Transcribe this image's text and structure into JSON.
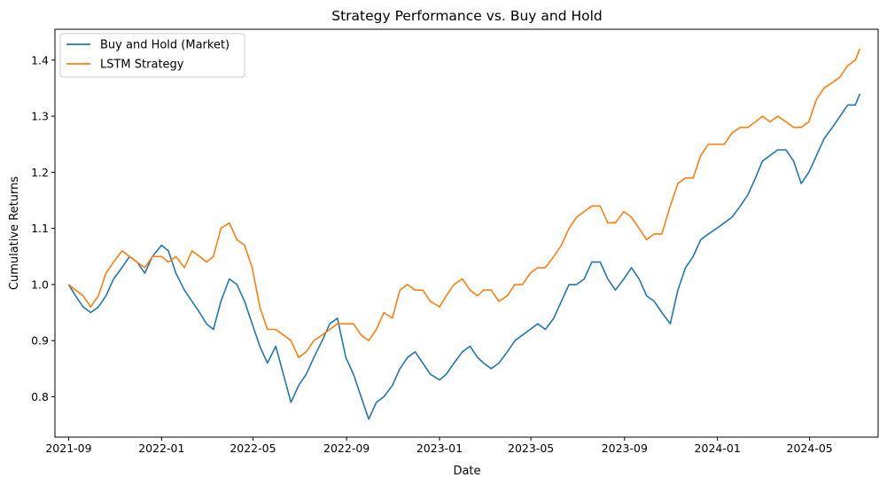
{
  "chart_data": {
    "type": "line",
    "title": "Strategy Performance vs. Buy and Hold",
    "xlabel": "Date",
    "ylabel": "Cumulative Returns",
    "xlim": [
      "2021-08-14",
      "2024-07-30"
    ],
    "ylim": [
      0.728,
      1.455
    ],
    "x_ticks": [
      "2021-09",
      "2022-01",
      "2022-05",
      "2022-09",
      "2023-01",
      "2023-05",
      "2023-09",
      "2024-01",
      "2024-05"
    ],
    "x_tick_dates": [
      "2021-09-01",
      "2022-01-01",
      "2022-05-01",
      "2022-09-01",
      "2023-01-01",
      "2023-05-01",
      "2023-09-01",
      "2024-01-01",
      "2024-05-01"
    ],
    "y_ticks": [
      "0.8",
      "0.9",
      "1.0",
      "1.1",
      "1.2",
      "1.3",
      "1.4"
    ],
    "y_tick_values": [
      0.8,
      0.9,
      1.0,
      1.1,
      1.2,
      1.3,
      1.4
    ],
    "grid": false,
    "legend_position": "top-left",
    "series": [
      {
        "name": "Buy and Hold (Market)",
        "color": "#1f77b4",
        "points": [
          [
            "2021-09-01",
            1.0
          ],
          [
            "2021-09-10",
            0.98
          ],
          [
            "2021-09-20",
            0.96
          ],
          [
            "2021-09-30",
            0.95
          ],
          [
            "2021-10-10",
            0.96
          ],
          [
            "2021-10-20",
            0.98
          ],
          [
            "2021-10-30",
            1.01
          ],
          [
            "2021-11-10",
            1.03
          ],
          [
            "2021-11-20",
            1.05
          ],
          [
            "2021-11-30",
            1.04
          ],
          [
            "2021-12-10",
            1.02
          ],
          [
            "2021-12-20",
            1.05
          ],
          [
            "2022-01-01",
            1.07
          ],
          [
            "2022-01-10",
            1.06
          ],
          [
            "2022-01-20",
            1.02
          ],
          [
            "2022-01-31",
            0.99
          ],
          [
            "2022-02-10",
            0.97
          ],
          [
            "2022-02-20",
            0.95
          ],
          [
            "2022-03-01",
            0.93
          ],
          [
            "2022-03-10",
            0.92
          ],
          [
            "2022-03-20",
            0.97
          ],
          [
            "2022-03-31",
            1.01
          ],
          [
            "2022-04-10",
            1.0
          ],
          [
            "2022-04-20",
            0.97
          ],
          [
            "2022-04-30",
            0.93
          ],
          [
            "2022-05-10",
            0.89
          ],
          [
            "2022-05-20",
            0.86
          ],
          [
            "2022-05-31",
            0.89
          ],
          [
            "2022-06-10",
            0.84
          ],
          [
            "2022-06-20",
            0.79
          ],
          [
            "2022-06-30",
            0.82
          ],
          [
            "2022-07-10",
            0.84
          ],
          [
            "2022-07-20",
            0.87
          ],
          [
            "2022-07-31",
            0.9
          ],
          [
            "2022-08-10",
            0.93
          ],
          [
            "2022-08-20",
            0.94
          ],
          [
            "2022-08-31",
            0.87
          ],
          [
            "2022-09-10",
            0.84
          ],
          [
            "2022-09-20",
            0.8
          ],
          [
            "2022-09-30",
            0.76
          ],
          [
            "2022-10-10",
            0.79
          ],
          [
            "2022-10-20",
            0.8
          ],
          [
            "2022-10-31",
            0.82
          ],
          [
            "2022-11-10",
            0.85
          ],
          [
            "2022-11-20",
            0.87
          ],
          [
            "2022-11-30",
            0.88
          ],
          [
            "2022-12-10",
            0.86
          ],
          [
            "2022-12-20",
            0.84
          ],
          [
            "2023-01-01",
            0.83
          ],
          [
            "2023-01-10",
            0.84
          ],
          [
            "2023-01-20",
            0.86
          ],
          [
            "2023-01-31",
            0.88
          ],
          [
            "2023-02-10",
            0.89
          ],
          [
            "2023-02-20",
            0.87
          ],
          [
            "2023-02-28",
            0.86
          ],
          [
            "2023-03-10",
            0.85
          ],
          [
            "2023-03-20",
            0.86
          ],
          [
            "2023-03-31",
            0.88
          ],
          [
            "2023-04-10",
            0.9
          ],
          [
            "2023-04-20",
            0.91
          ],
          [
            "2023-04-30",
            0.92
          ],
          [
            "2023-05-10",
            0.93
          ],
          [
            "2023-05-20",
            0.92
          ],
          [
            "2023-05-31",
            0.94
          ],
          [
            "2023-06-10",
            0.97
          ],
          [
            "2023-06-20",
            1.0
          ],
          [
            "2023-06-30",
            1.0
          ],
          [
            "2023-07-10",
            1.01
          ],
          [
            "2023-07-20",
            1.04
          ],
          [
            "2023-07-31",
            1.04
          ],
          [
            "2023-08-10",
            1.01
          ],
          [
            "2023-08-20",
            0.99
          ],
          [
            "2023-08-31",
            1.01
          ],
          [
            "2023-09-10",
            1.03
          ],
          [
            "2023-09-20",
            1.01
          ],
          [
            "2023-09-30",
            0.98
          ],
          [
            "2023-10-10",
            0.97
          ],
          [
            "2023-10-20",
            0.95
          ],
          [
            "2023-10-31",
            0.93
          ],
          [
            "2023-11-10",
            0.99
          ],
          [
            "2023-11-20",
            1.03
          ],
          [
            "2023-11-30",
            1.05
          ],
          [
            "2023-12-10",
            1.08
          ],
          [
            "2023-12-20",
            1.09
          ],
          [
            "2023-12-31",
            1.1
          ],
          [
            "2024-01-10",
            1.11
          ],
          [
            "2024-01-20",
            1.12
          ],
          [
            "2024-01-31",
            1.14
          ],
          [
            "2024-02-10",
            1.16
          ],
          [
            "2024-02-20",
            1.19
          ],
          [
            "2024-02-29",
            1.22
          ],
          [
            "2024-03-10",
            1.23
          ],
          [
            "2024-03-20",
            1.24
          ],
          [
            "2024-03-31",
            1.24
          ],
          [
            "2024-04-10",
            1.22
          ],
          [
            "2024-04-20",
            1.18
          ],
          [
            "2024-04-30",
            1.2
          ],
          [
            "2024-05-10",
            1.23
          ],
          [
            "2024-05-20",
            1.26
          ],
          [
            "2024-05-31",
            1.28
          ],
          [
            "2024-06-10",
            1.3
          ],
          [
            "2024-06-20",
            1.32
          ],
          [
            "2024-06-30",
            1.32
          ],
          [
            "2024-07-06",
            1.34
          ]
        ]
      },
      {
        "name": "LSTM Strategy",
        "color": "#ff7f0e",
        "points": [
          [
            "2021-09-01",
            1.0
          ],
          [
            "2021-09-10",
            0.99
          ],
          [
            "2021-09-20",
            0.98
          ],
          [
            "2021-09-30",
            0.96
          ],
          [
            "2021-10-10",
            0.98
          ],
          [
            "2021-10-20",
            1.02
          ],
          [
            "2021-10-30",
            1.04
          ],
          [
            "2021-11-10",
            1.06
          ],
          [
            "2021-11-20",
            1.05
          ],
          [
            "2021-11-30",
            1.04
          ],
          [
            "2021-12-10",
            1.03
          ],
          [
            "2021-12-20",
            1.05
          ],
          [
            "2022-01-01",
            1.05
          ],
          [
            "2022-01-10",
            1.04
          ],
          [
            "2022-01-20",
            1.05
          ],
          [
            "2022-01-31",
            1.03
          ],
          [
            "2022-02-10",
            1.06
          ],
          [
            "2022-02-20",
            1.05
          ],
          [
            "2022-03-01",
            1.04
          ],
          [
            "2022-03-10",
            1.05
          ],
          [
            "2022-03-20",
            1.1
          ],
          [
            "2022-03-31",
            1.11
          ],
          [
            "2022-04-10",
            1.08
          ],
          [
            "2022-04-20",
            1.07
          ],
          [
            "2022-04-30",
            1.03
          ],
          [
            "2022-05-10",
            0.96
          ],
          [
            "2022-05-20",
            0.92
          ],
          [
            "2022-05-31",
            0.92
          ],
          [
            "2022-06-10",
            0.91
          ],
          [
            "2022-06-20",
            0.9
          ],
          [
            "2022-06-30",
            0.87
          ],
          [
            "2022-07-10",
            0.88
          ],
          [
            "2022-07-20",
            0.9
          ],
          [
            "2022-07-31",
            0.91
          ],
          [
            "2022-08-10",
            0.92
          ],
          [
            "2022-08-20",
            0.93
          ],
          [
            "2022-08-31",
            0.93
          ],
          [
            "2022-09-10",
            0.93
          ],
          [
            "2022-09-20",
            0.91
          ],
          [
            "2022-09-30",
            0.9
          ],
          [
            "2022-10-10",
            0.92
          ],
          [
            "2022-10-20",
            0.95
          ],
          [
            "2022-10-31",
            0.94
          ],
          [
            "2022-11-10",
            0.99
          ],
          [
            "2022-11-20",
            1.0
          ],
          [
            "2022-11-30",
            0.99
          ],
          [
            "2022-12-10",
            0.99
          ],
          [
            "2022-12-20",
            0.97
          ],
          [
            "2023-01-01",
            0.96
          ],
          [
            "2023-01-10",
            0.98
          ],
          [
            "2023-01-20",
            1.0
          ],
          [
            "2023-01-31",
            1.01
          ],
          [
            "2023-02-10",
            0.99
          ],
          [
            "2023-02-20",
            0.98
          ],
          [
            "2023-02-28",
            0.99
          ],
          [
            "2023-03-10",
            0.99
          ],
          [
            "2023-03-20",
            0.97
          ],
          [
            "2023-03-31",
            0.98
          ],
          [
            "2023-04-10",
            1.0
          ],
          [
            "2023-04-20",
            1.0
          ],
          [
            "2023-04-30",
            1.02
          ],
          [
            "2023-05-10",
            1.03
          ],
          [
            "2023-05-20",
            1.03
          ],
          [
            "2023-05-31",
            1.05
          ],
          [
            "2023-06-10",
            1.07
          ],
          [
            "2023-06-20",
            1.1
          ],
          [
            "2023-06-30",
            1.12
          ],
          [
            "2023-07-10",
            1.13
          ],
          [
            "2023-07-20",
            1.14
          ],
          [
            "2023-07-31",
            1.14
          ],
          [
            "2023-08-10",
            1.11
          ],
          [
            "2023-08-20",
            1.11
          ],
          [
            "2023-08-31",
            1.13
          ],
          [
            "2023-09-10",
            1.12
          ],
          [
            "2023-09-20",
            1.1
          ],
          [
            "2023-09-30",
            1.08
          ],
          [
            "2023-10-10",
            1.09
          ],
          [
            "2023-10-20",
            1.09
          ],
          [
            "2023-10-31",
            1.14
          ],
          [
            "2023-11-10",
            1.18
          ],
          [
            "2023-11-20",
            1.19
          ],
          [
            "2023-11-30",
            1.19
          ],
          [
            "2023-12-10",
            1.23
          ],
          [
            "2023-12-20",
            1.25
          ],
          [
            "2023-12-31",
            1.25
          ],
          [
            "2024-01-10",
            1.25
          ],
          [
            "2024-01-20",
            1.27
          ],
          [
            "2024-01-31",
            1.28
          ],
          [
            "2024-02-10",
            1.28
          ],
          [
            "2024-02-20",
            1.29
          ],
          [
            "2024-02-29",
            1.3
          ],
          [
            "2024-03-10",
            1.29
          ],
          [
            "2024-03-20",
            1.3
          ],
          [
            "2024-03-31",
            1.29
          ],
          [
            "2024-04-10",
            1.28
          ],
          [
            "2024-04-20",
            1.28
          ],
          [
            "2024-04-30",
            1.29
          ],
          [
            "2024-05-10",
            1.33
          ],
          [
            "2024-05-20",
            1.35
          ],
          [
            "2024-05-31",
            1.36
          ],
          [
            "2024-06-10",
            1.37
          ],
          [
            "2024-06-20",
            1.39
          ],
          [
            "2024-06-30",
            1.4
          ],
          [
            "2024-07-06",
            1.42
          ]
        ]
      }
    ]
  }
}
